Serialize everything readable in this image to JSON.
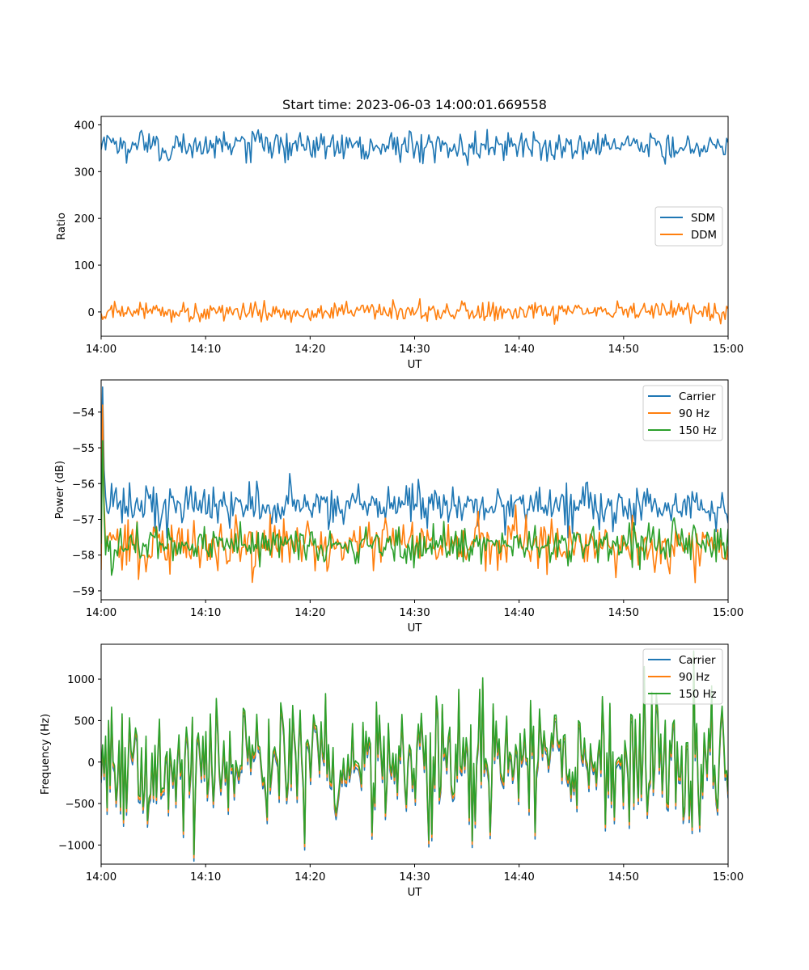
{
  "figure_title": "Start time: 2023-06-03 14:00:01.669558",
  "chart_data": [
    {
      "type": "line",
      "title": "Start time: 2023-06-03 14:00:01.669558",
      "xlabel": "UT",
      "ylabel": "Ratio",
      "x_range": [
        "14:00",
        "15:00"
      ],
      "xticks": [
        "14:00",
        "14:10",
        "14:20",
        "14:30",
        "14:40",
        "14:50",
        "15:00"
      ],
      "ylim": [
        -52,
        418
      ],
      "yticks": [
        0,
        100,
        200,
        300,
        400
      ],
      "legend_position": "center-right",
      "grid": false,
      "series": [
        {
          "name": "SDM",
          "color": "#1f77b4",
          "mean": 355,
          "noise": 16,
          "points": 420
        },
        {
          "name": "DDM",
          "color": "#ff7f0e",
          "mean": 0,
          "noise": 10,
          "points": 420
        }
      ]
    },
    {
      "type": "line",
      "xlabel": "UT",
      "ylabel": "Power (dB)",
      "x_range": [
        "14:00",
        "15:00"
      ],
      "xticks": [
        "14:00",
        "14:10",
        "14:20",
        "14:30",
        "14:40",
        "14:50",
        "15:00"
      ],
      "ylim": [
        -59.25,
        -53.1
      ],
      "yticks": [
        -54,
        -55,
        -56,
        -57,
        -58,
        -59
      ],
      "legend_position": "top-right",
      "grid": false,
      "series": [
        {
          "name": "Carrier",
          "color": "#1f77b4",
          "mean": -56.6,
          "noise": 0.3,
          "points": 420,
          "spike": -53.3
        },
        {
          "name": "90 Hz",
          "color": "#ff7f0e",
          "mean": -57.7,
          "noise": 0.35,
          "points": 420,
          "spike": -53.8
        },
        {
          "name": "150 Hz",
          "color": "#2ca02c",
          "mean": -57.7,
          "noise": 0.28,
          "points": 420,
          "spike": -54.8
        }
      ]
    },
    {
      "type": "line",
      "xlabel": "UT",
      "ylabel": "Frequency (Hz)",
      "x_range": [
        "14:00",
        "15:00"
      ],
      "xticks": [
        "14:00",
        "14:10",
        "14:20",
        "14:30",
        "14:40",
        "14:50",
        "15:00"
      ],
      "ylim": [
        -1230,
        1420
      ],
      "yticks": [
        1000,
        500,
        0,
        -500,
        -1000
      ],
      "legend_position": "top-right",
      "grid": false,
      "series": [
        {
          "name": "Carrier",
          "color": "#1f77b4",
          "mean": -60,
          "noise": 380,
          "points": 420
        },
        {
          "name": "90 Hz",
          "color": "#ff7f0e",
          "mean": -20,
          "noise": 380,
          "points": 420
        },
        {
          "name": "150 Hz",
          "color": "#2ca02c",
          "mean": 20,
          "noise": 380,
          "points": 420
        }
      ]
    }
  ]
}
